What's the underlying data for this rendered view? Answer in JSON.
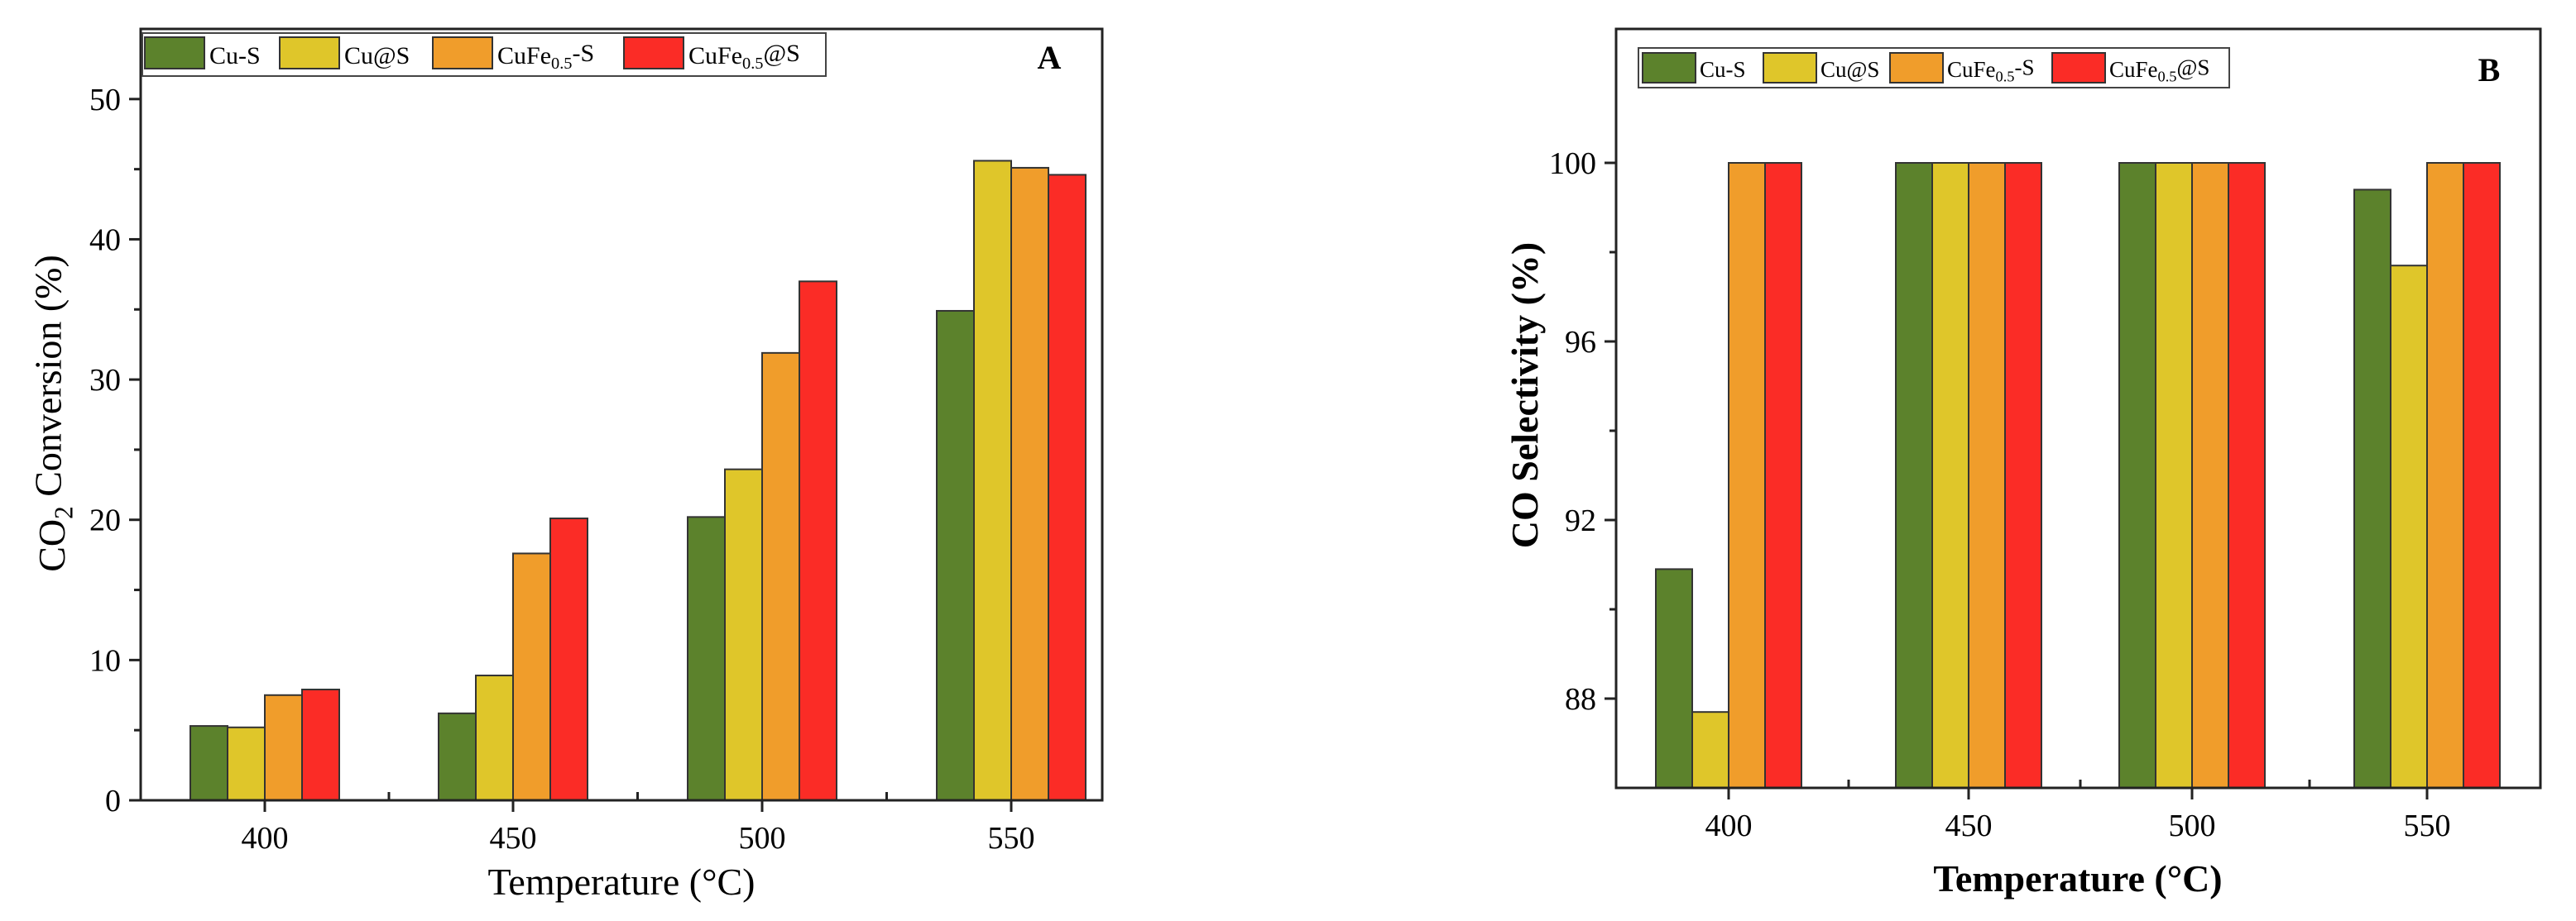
{
  "chart_data": [
    {
      "type": "bar",
      "panel_label": "A",
      "categories": [
        "400",
        "450",
        "500",
        "550"
      ],
      "series": [
        {
          "name": "Cu-S",
          "color": "#5c822c",
          "values": [
            5.3,
            6.2,
            20.2,
            34.9
          ]
        },
        {
          "name": "Cu@S",
          "color": "#dfc62a",
          "values": [
            5.2,
            8.9,
            23.6,
            45.6
          ]
        },
        {
          "name": "CuFe0.5-S",
          "color": "#f09d2b",
          "values": [
            7.5,
            17.6,
            31.9,
            45.1
          ]
        },
        {
          "name": "CuFe0.5@S",
          "color": "#fb2c26",
          "values": [
            7.9,
            20.1,
            37.0,
            44.6
          ]
        }
      ],
      "xlabel": "Temperature (°C)",
      "ylabel": "CO₂ Conversion (%)",
      "ylim": [
        0,
        55
      ],
      "yticks": [
        "0",
        "10",
        "20",
        "30",
        "40",
        "50"
      ],
      "legend_position": "top-left",
      "grid": false
    },
    {
      "type": "bar",
      "panel_label": "B",
      "categories": [
        "400",
        "450",
        "500",
        "550"
      ],
      "series": [
        {
          "name": "Cu-S",
          "color": "#5c822c",
          "values": [
            90.9,
            100,
            100,
            99.4
          ]
        },
        {
          "name": "Cu@S",
          "color": "#dfc62a",
          "values": [
            87.7,
            100,
            100,
            97.7
          ]
        },
        {
          "name": "CuFe0.5-S",
          "color": "#f09d2b",
          "values": [
            100,
            100,
            100,
            100
          ]
        },
        {
          "name": "CuFe0.5@S",
          "color": "#fb2c26",
          "values": [
            100,
            100,
            100,
            100
          ]
        }
      ],
      "xlabel": "Temperature (°C)",
      "ylabel": "CO Selectivity (%)",
      "ylim": [
        86,
        103
      ],
      "yticks": [
        "88",
        "92",
        "96",
        "100"
      ],
      "legend_position": "top-left",
      "grid": false
    }
  ]
}
